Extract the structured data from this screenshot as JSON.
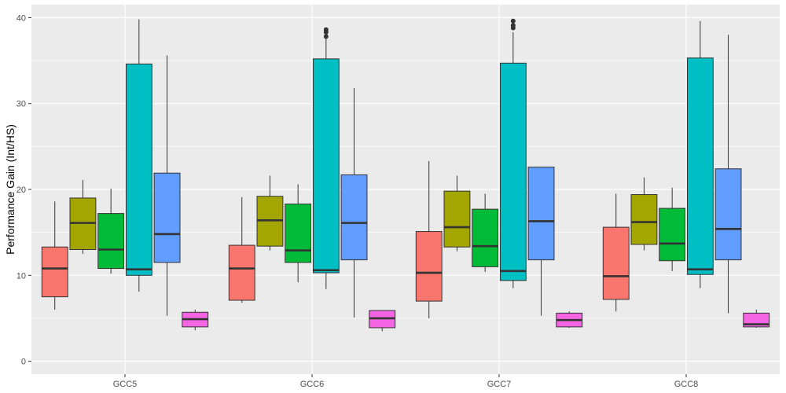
{
  "chart_data": {
    "type": "boxplot",
    "title": "",
    "xlabel": "",
    "ylabel": "Performance Gain (Int/HS)",
    "ylim": [
      -1.5,
      41.5
    ],
    "yticks": [
      "0",
      "10",
      "20",
      "30",
      "40"
    ],
    "categories": [
      "GCC5",
      "GCC6",
      "GCC7",
      "GCC8"
    ],
    "grid": true,
    "legend": "none",
    "colors": [
      "#F8766D",
      "#A3A500",
      "#00BA38",
      "#00BFC4",
      "#619CFF",
      "#F564E3"
    ],
    "background": "#EBEBEB",
    "series": [
      {
        "boxes": [
          {
            "min": 6.0,
            "q1": 7.5,
            "median": 10.8,
            "q3": 13.3,
            "max": 18.6,
            "outliers": []
          },
          {
            "min": 6.8,
            "q1": 7.1,
            "median": 10.8,
            "q3": 13.5,
            "max": 19.1,
            "outliers": []
          },
          {
            "min": 5.0,
            "q1": 7.0,
            "median": 10.3,
            "q3": 15.1,
            "max": 23.3,
            "outliers": []
          },
          {
            "min": 5.8,
            "q1": 7.2,
            "median": 9.9,
            "q3": 15.6,
            "max": 19.5,
            "outliers": []
          }
        ]
      },
      {
        "boxes": [
          {
            "min": 12.5,
            "q1": 13.0,
            "median": 16.1,
            "q3": 19.0,
            "max": 21.1,
            "outliers": []
          },
          {
            "min": 12.9,
            "q1": 13.4,
            "median": 16.4,
            "q3": 19.2,
            "max": 21.6,
            "outliers": []
          },
          {
            "min": 12.8,
            "q1": 13.3,
            "median": 15.6,
            "q3": 19.8,
            "max": 21.6,
            "outliers": []
          },
          {
            "min": 12.9,
            "q1": 13.6,
            "median": 16.2,
            "q3": 19.4,
            "max": 21.4,
            "outliers": []
          }
        ]
      },
      {
        "boxes": [
          {
            "min": 10.2,
            "q1": 10.8,
            "median": 13.0,
            "q3": 17.2,
            "max": 20.1,
            "outliers": []
          },
          {
            "min": 9.2,
            "q1": 11.5,
            "median": 12.9,
            "q3": 18.3,
            "max": 20.6,
            "outliers": []
          },
          {
            "min": 10.4,
            "q1": 11.0,
            "median": 13.4,
            "q3": 17.7,
            "max": 19.5,
            "outliers": []
          },
          {
            "min": 10.5,
            "q1": 11.7,
            "median": 13.7,
            "q3": 17.8,
            "max": 20.2,
            "outliers": []
          }
        ]
      },
      {
        "boxes": [
          {
            "min": 8.1,
            "q1": 10.0,
            "median": 10.7,
            "q3": 34.6,
            "max": 39.8,
            "outliers": []
          },
          {
            "min": 8.4,
            "q1": 10.3,
            "median": 10.6,
            "q3": 35.2,
            "max": 38.6,
            "outliers": [
              37.8,
              38.3,
              38.6
            ]
          },
          {
            "min": 8.5,
            "q1": 9.4,
            "median": 10.5,
            "q3": 34.7,
            "max": 38.3,
            "outliers": [
              38.8,
              39.1,
              39.6
            ]
          },
          {
            "min": 8.5,
            "q1": 10.1,
            "median": 10.7,
            "q3": 35.3,
            "max": 39.6,
            "outliers": []
          }
        ]
      },
      {
        "boxes": [
          {
            "min": 5.3,
            "q1": 11.5,
            "median": 14.8,
            "q3": 21.9,
            "max": 35.6,
            "outliers": []
          },
          {
            "min": 5.1,
            "q1": 11.8,
            "median": 16.1,
            "q3": 21.7,
            "max": 31.8,
            "outliers": []
          },
          {
            "min": 5.3,
            "q1": 11.8,
            "median": 16.3,
            "q3": 22.6,
            "max": 22.6,
            "outliers": []
          },
          {
            "min": 5.6,
            "q1": 11.8,
            "median": 15.4,
            "q3": 22.4,
            "max": 38.0,
            "outliers": []
          }
        ]
      },
      {
        "boxes": [
          {
            "min": 3.6,
            "q1": 4.0,
            "median": 4.9,
            "q3": 5.7,
            "max": 6.0,
            "outliers": []
          },
          {
            "min": 3.5,
            "q1": 3.9,
            "median": 5.0,
            "q3": 5.9,
            "max": 5.9,
            "outliers": []
          },
          {
            "min": 3.9,
            "q1": 4.0,
            "median": 4.8,
            "q3": 5.6,
            "max": 5.8,
            "outliers": []
          },
          {
            "min": 3.9,
            "q1": 4.0,
            "median": 4.3,
            "q3": 5.6,
            "max": 6.0,
            "outliers": []
          }
        ]
      }
    ]
  }
}
